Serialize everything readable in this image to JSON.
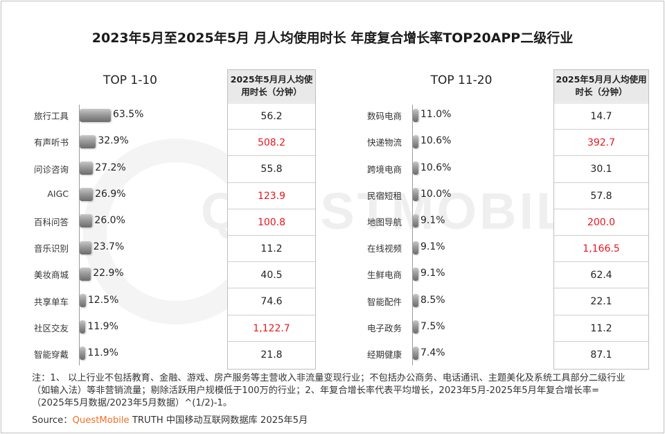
{
  "title": "2023年5月至2025年5月 月人均使用时长 年度复合增长率TOP20APP二级行业",
  "watermark": "QUESTMOBILE",
  "note": "注：1、 以上行业不包括教育、金融、游戏、房产服务等主营收入非流量变现行业；不包括办公商务、电话通讯、主题美化及系统工具部分二级行业（如输入法）等非营销流量；剔除活跃用户规模低于100万的行业；2、年复合增长率代表平均增长，2023年5月-2025年5月年复合增长率=（2025年5月数据/2023年5月数据）^(1/2)-1。",
  "source": {
    "prefix": "Source：",
    "brand": "QuestMobile",
    "rest": " TRUTH 中国移动互联网数据库 2025年5月"
  },
  "colors": {
    "highlight": "#e8151b",
    "bar": "#8a8a8a",
    "brand": "#f36f21"
  },
  "chart_data": [
    {
      "type": "bar",
      "orientation": "horizontal",
      "title": "TOP 1-10",
      "categories": [
        "旅行工具",
        "有声听书",
        "问诊咨询",
        "AIGC",
        "百科问答",
        "音乐识别",
        "美妆商城",
        "共享单车",
        "社区交友",
        "智能穿戴"
      ],
      "values": [
        63.5,
        32.9,
        27.2,
        26.9,
        26.0,
        23.7,
        22.9,
        12.5,
        11.9,
        11.9
      ],
      "labels": [
        "63.5%",
        "32.9%",
        "27.2%",
        "26.9%",
        "26.0%",
        "23.7%",
        "22.9%",
        "12.5%",
        "11.9%",
        "11.9%"
      ],
      "unit": "%",
      "table": {
        "header": "2025年5月月人均使用时长（分钟）",
        "values": [
          "56.2",
          "508.2",
          "55.8",
          "123.9",
          "100.8",
          "11.2",
          "40.5",
          "74.6",
          "1,122.7",
          "21.8"
        ],
        "highlight": [
          false,
          true,
          false,
          true,
          true,
          false,
          false,
          false,
          true,
          false
        ]
      }
    },
    {
      "type": "bar",
      "orientation": "horizontal",
      "title": "TOP 11-20",
      "categories": [
        "数码电商",
        "快递物流",
        "跨境电商",
        "民宿短租",
        "地图导航",
        "在线视频",
        "生鲜电商",
        "智能配件",
        "电子政务",
        "经期健康"
      ],
      "values": [
        11.0,
        10.6,
        10.6,
        10.0,
        9.1,
        9.1,
        9.1,
        8.5,
        7.5,
        7.4
      ],
      "labels": [
        "11.0%",
        "10.6%",
        "10.6%",
        "10.0%",
        "9.1%",
        "9.1%",
        "9.1%",
        "8.5%",
        "7.5%",
        "7.4%"
      ],
      "unit": "%",
      "table": {
        "header": "2025年5月月人均使用时长（分钟）",
        "values": [
          "14.7",
          "392.7",
          "30.1",
          "57.8",
          "200.0",
          "1,166.5",
          "62.4",
          "22.1",
          "11.2",
          "87.1"
        ],
        "highlight": [
          false,
          true,
          false,
          false,
          true,
          true,
          false,
          false,
          false,
          false
        ]
      }
    }
  ]
}
